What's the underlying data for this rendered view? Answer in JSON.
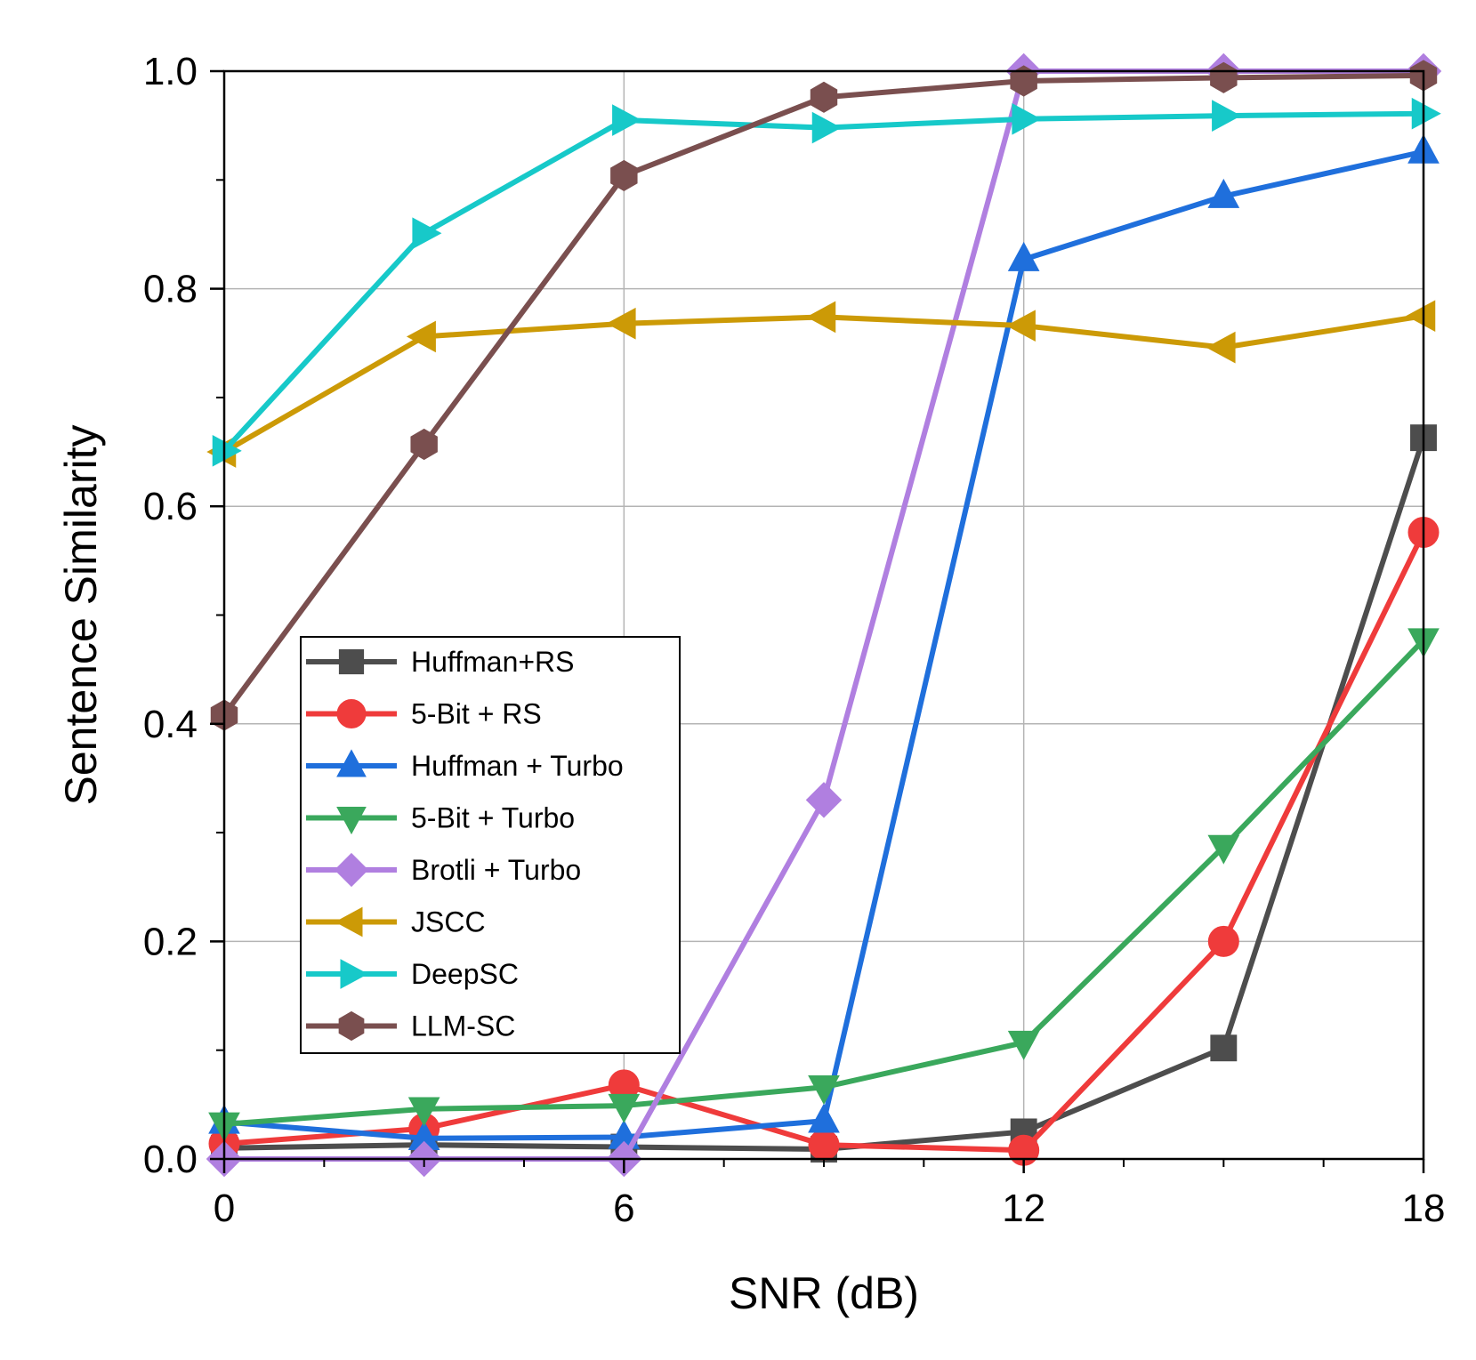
{
  "chart_data": {
    "type": "line",
    "title": "",
    "xlabel": "SNR (dB)",
    "ylabel": "Sentence Similarity",
    "xlim": [
      0,
      18
    ],
    "ylim": [
      0,
      1.0
    ],
    "x": [
      0,
      3,
      6,
      9,
      12,
      15,
      18
    ],
    "xticks": [
      0,
      6,
      12,
      18
    ],
    "xtick_labels": [
      "0",
      "6",
      "12",
      "18"
    ],
    "yticks": [
      0.0,
      0.2,
      0.4,
      0.6,
      0.8,
      1.0
    ],
    "ytick_labels": [
      "0.0",
      "0.2",
      "0.4",
      "0.6",
      "0.8",
      "1.0"
    ],
    "grid": true,
    "legend_position": "center-left",
    "series": [
      {
        "name": "Huffman+RS",
        "color": "#4d4d4d",
        "marker": "square",
        "values": [
          0.01,
          0.013,
          0.011,
          0.009,
          0.025,
          0.102,
          0.663
        ]
      },
      {
        "name": "5-Bit + RS",
        "color": "#ef3b3b",
        "marker": "circle",
        "values": [
          0.014,
          0.028,
          0.068,
          0.013,
          0.008,
          0.2,
          0.576
        ]
      },
      {
        "name": "Huffman + Turbo",
        "color": "#1f6fdc",
        "marker": "triangle-up",
        "values": [
          0.034,
          0.019,
          0.02,
          0.035,
          0.827,
          0.885,
          0.926
        ]
      },
      {
        "name": "5-Bit + Turbo",
        "color": "#3aa85c",
        "marker": "triangle-down",
        "values": [
          0.032,
          0.046,
          0.049,
          0.066,
          0.107,
          0.287,
          0.477
        ]
      },
      {
        "name": "Brotli + Turbo",
        "color": "#b07fe0",
        "marker": "diamond",
        "values": [
          0.0,
          0.0,
          0.0,
          0.33,
          1.0,
          1.0,
          1.0
        ]
      },
      {
        "name": "JSCC",
        "color": "#cc9a06",
        "marker": "triangle-left",
        "values": [
          0.65,
          0.756,
          0.768,
          0.774,
          0.766,
          0.746,
          0.775
        ]
      },
      {
        "name": "DeepSC",
        "color": "#17c9c9",
        "marker": "triangle-right",
        "values": [
          0.651,
          0.851,
          0.955,
          0.948,
          0.956,
          0.959,
          0.961
        ]
      },
      {
        "name": "LLM-SC",
        "color": "#7a4f4f",
        "marker": "hexagon",
        "values": [
          0.408,
          0.657,
          0.904,
          0.976,
          0.991,
          0.994,
          0.996
        ]
      }
    ]
  }
}
